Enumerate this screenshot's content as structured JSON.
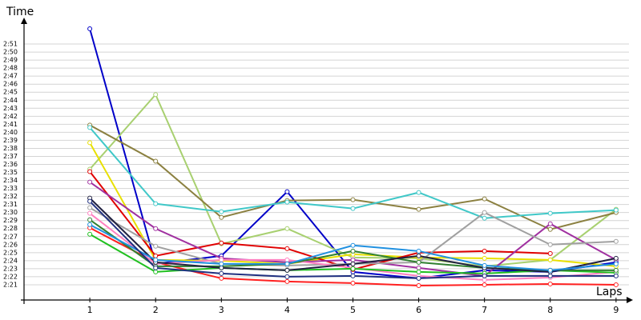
{
  "chart_data": {
    "type": "line",
    "y_label": "Time",
    "x_label": "Laps",
    "x": [
      1,
      2,
      3,
      4,
      5,
      6,
      7,
      8,
      9
    ],
    "xlim": [
      0,
      9.3
    ],
    "xticks": [
      1,
      2,
      3,
      4,
      5,
      6,
      7,
      8,
      9
    ],
    "ylim": [
      139,
      173
    ],
    "yticks": [
      {
        "value": 141,
        "label": "2:21"
      },
      {
        "value": 142,
        "label": "2:22"
      },
      {
        "value": 143,
        "label": "2:23"
      },
      {
        "value": 144,
        "label": "2:24"
      },
      {
        "value": 145,
        "label": "2:25"
      },
      {
        "value": 146,
        "label": "2:26"
      },
      {
        "value": 147,
        "label": "2:27"
      },
      {
        "value": 148,
        "label": "2:28"
      },
      {
        "value": 149,
        "label": "2:29"
      },
      {
        "value": 150,
        "label": "2:30"
      },
      {
        "value": 151,
        "label": "2:31"
      },
      {
        "value": 152,
        "label": "2:32"
      },
      {
        "value": 153,
        "label": "2:33"
      },
      {
        "value": 154,
        "label": "2:34"
      },
      {
        "value": 155,
        "label": "2:35"
      },
      {
        "value": 156,
        "label": "2:36"
      },
      {
        "value": 157,
        "label": "2:37"
      },
      {
        "value": 158,
        "label": "2:38"
      },
      {
        "value": 159,
        "label": "2:39"
      },
      {
        "value": 160,
        "label": "2:40"
      },
      {
        "value": 161,
        "label": "2:41"
      },
      {
        "value": 162,
        "label": "2:42"
      },
      {
        "value": 163,
        "label": "2:43"
      },
      {
        "value": 164,
        "label": "2:44"
      },
      {
        "value": 165,
        "label": "2:45"
      },
      {
        "value": 166,
        "label": "2:46"
      },
      {
        "value": 167,
        "label": "2:47"
      },
      {
        "value": 168,
        "label": "2:48"
      },
      {
        "value": 169,
        "label": "2:49"
      },
      {
        "value": 170,
        "label": "2:50"
      },
      {
        "value": 171,
        "label": "2:51"
      }
    ],
    "grid": true,
    "series": [
      {
        "color": "#0000c8",
        "values": [
          172.9,
          143.6,
          144.6,
          152.6,
          142.6,
          141.8,
          142.8,
          142.6,
          143.8
        ]
      },
      {
        "color": "#a8d070",
        "values": [
          155.4,
          164.7,
          146.1,
          148.0,
          144.4,
          144.3,
          143.3,
          144.1,
          150.4
        ]
      },
      {
        "color": "#8b8040",
        "values": [
          160.9,
          156.4,
          149.4,
          151.5,
          151.6,
          150.4,
          151.7,
          147.9,
          150.0
        ]
      },
      {
        "color": "#40c8c8",
        "values": [
          160.6,
          151.1,
          150.1,
          151.3,
          150.5,
          152.5,
          149.3,
          149.9,
          150.3
        ]
      },
      {
        "color": "#e8e000",
        "values": [
          158.7,
          144.1,
          144.0,
          143.6,
          144.8,
          144.4,
          144.3,
          144.1,
          143.3
        ]
      },
      {
        "color": "#e00000",
        "values": [
          155.1,
          144.6,
          146.2,
          145.5,
          142.9,
          145.0,
          145.2,
          144.9,
          null
        ]
      },
      {
        "color": "#ff2020",
        "values": [
          148.1,
          143.8,
          141.8,
          141.4,
          141.2,
          140.9,
          141.0,
          141.1,
          141.0
        ]
      },
      {
        "color": "#a030a0",
        "values": [
          153.8,
          148.0,
          144.3,
          143.8,
          144.1,
          143.1,
          142.1,
          148.6,
          144.1
        ]
      },
      {
        "color": "#a0a0a0",
        "values": [
          150.6,
          145.8,
          143.6,
          143.4,
          143.6,
          143.8,
          150.0,
          146.0,
          146.4
        ]
      },
      {
        "color": "#ff80c0",
        "values": [
          149.9,
          143.6,
          144.1,
          144.1,
          143.1,
          142.1,
          141.6,
          141.9,
          142.6
        ]
      },
      {
        "color": "#20c020",
        "values": [
          147.3,
          142.6,
          143.1,
          142.8,
          143.0,
          142.6,
          142.4,
          142.8,
          142.5
        ]
      },
      {
        "color": "#308030",
        "values": [
          149.1,
          143.3,
          143.3,
          143.6,
          145.2,
          143.8,
          143.1,
          142.8,
          142.8
        ]
      },
      {
        "color": "#202040",
        "values": [
          151.8,
          143.8,
          143.1,
          142.8,
          143.6,
          144.6,
          143.1,
          142.6,
          144.3
        ]
      },
      {
        "color": "#2090e0",
        "values": [
          148.5,
          144.1,
          143.6,
          143.6,
          145.9,
          145.2,
          143.4,
          142.8,
          143.6
        ]
      },
      {
        "color": "#203080",
        "values": [
          151.4,
          143.1,
          142.4,
          142.0,
          142.1,
          141.8,
          142.1,
          142.1,
          142.1
        ]
      }
    ]
  }
}
